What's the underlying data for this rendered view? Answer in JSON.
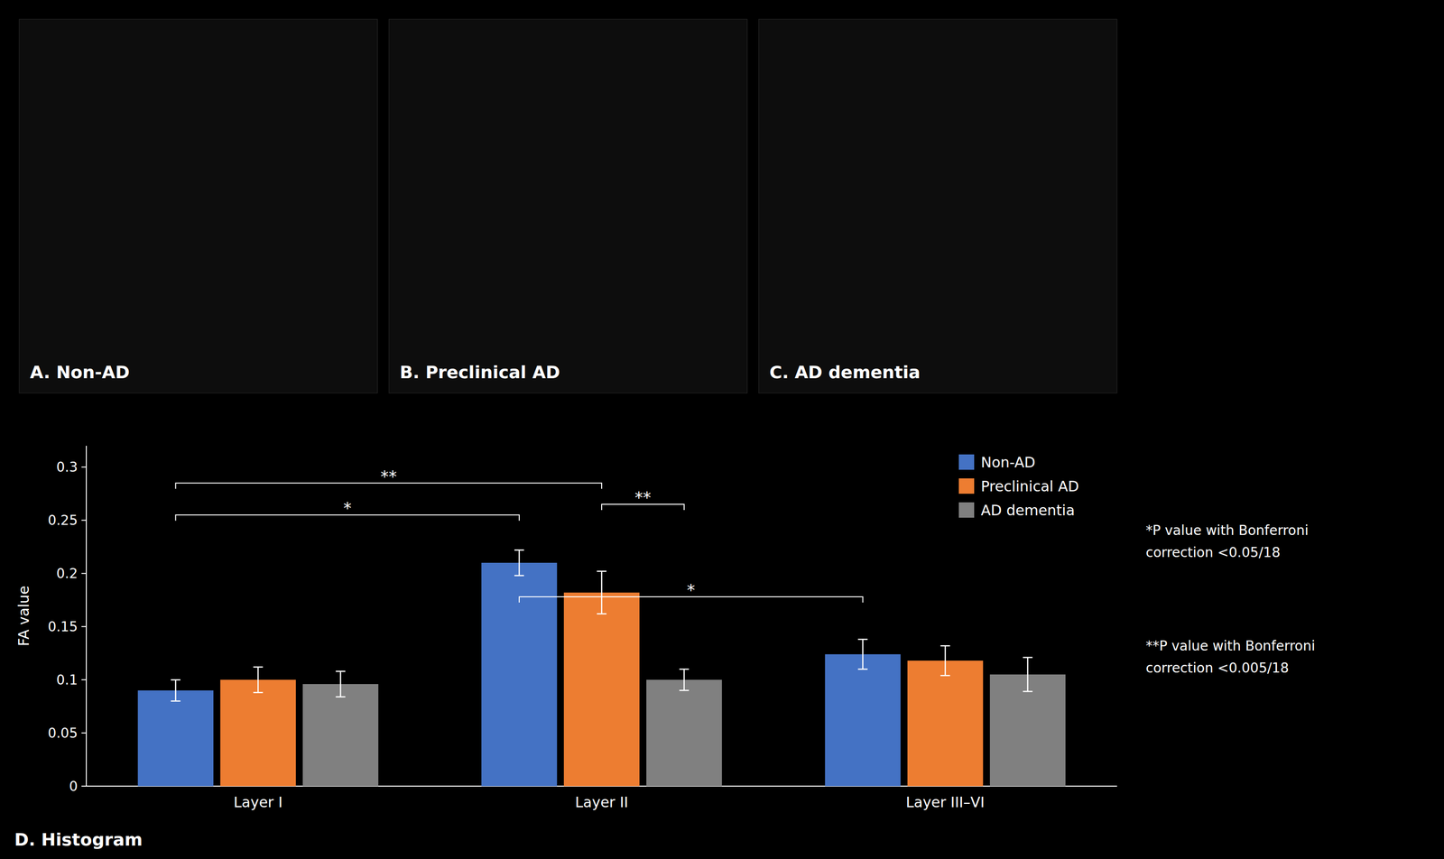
{
  "chart_data": {
    "type": "bar",
    "panel_labels": [
      "A. Non-AD",
      "B. Preclinical AD",
      "C. AD dementia"
    ],
    "label": "D. Histogram",
    "ylabel": "FA value",
    "categories": [
      "Layer I",
      "Layer II",
      "Layer III–VI"
    ],
    "series": [
      {
        "name": "Non-AD",
        "color": "#4472c4",
        "values": [
          0.09,
          0.21,
          0.124
        ],
        "errors": [
          0.01,
          0.012,
          0.014
        ]
      },
      {
        "name": "Preclinical AD",
        "color": "#ed7d31",
        "values": [
          0.1,
          0.182,
          0.118
        ],
        "errors": [
          0.012,
          0.02,
          0.014
        ]
      },
      {
        "name": "AD dementia",
        "color": "#808080",
        "values": [
          0.096,
          0.1,
          0.105
        ],
        "errors": [
          0.012,
          0.01,
          0.016
        ]
      }
    ],
    "ylim": [
      0,
      0.32
    ],
    "yticks": [
      0,
      0.05,
      0.1,
      0.15,
      0.2,
      0.25,
      0.3
    ],
    "grid": false,
    "legend": "upper right",
    "significance": [
      {
        "label": "*",
        "from": {
          "series": 0,
          "category": 0
        },
        "to": {
          "series": 0,
          "category": 1
        },
        "y": 0.255
      },
      {
        "label": "**",
        "from": {
          "series": 0,
          "category": 0
        },
        "to": {
          "series": 1,
          "category": 1
        },
        "y": 0.285
      },
      {
        "label": "**",
        "from": {
          "series": 1,
          "category": 1
        },
        "to": {
          "series": 2,
          "category": 1
        },
        "y": 0.265
      },
      {
        "label": "*",
        "from": {
          "series": 0,
          "category": 1
        },
        "to": {
          "series": 0,
          "category": 2
        },
        "y": 0.178
      }
    ],
    "notes": [
      "*​P value with Bonferroni\ncorrection <0.05/18",
      "**​P value with Bonferroni\ncorrection <0.005/18"
    ]
  }
}
